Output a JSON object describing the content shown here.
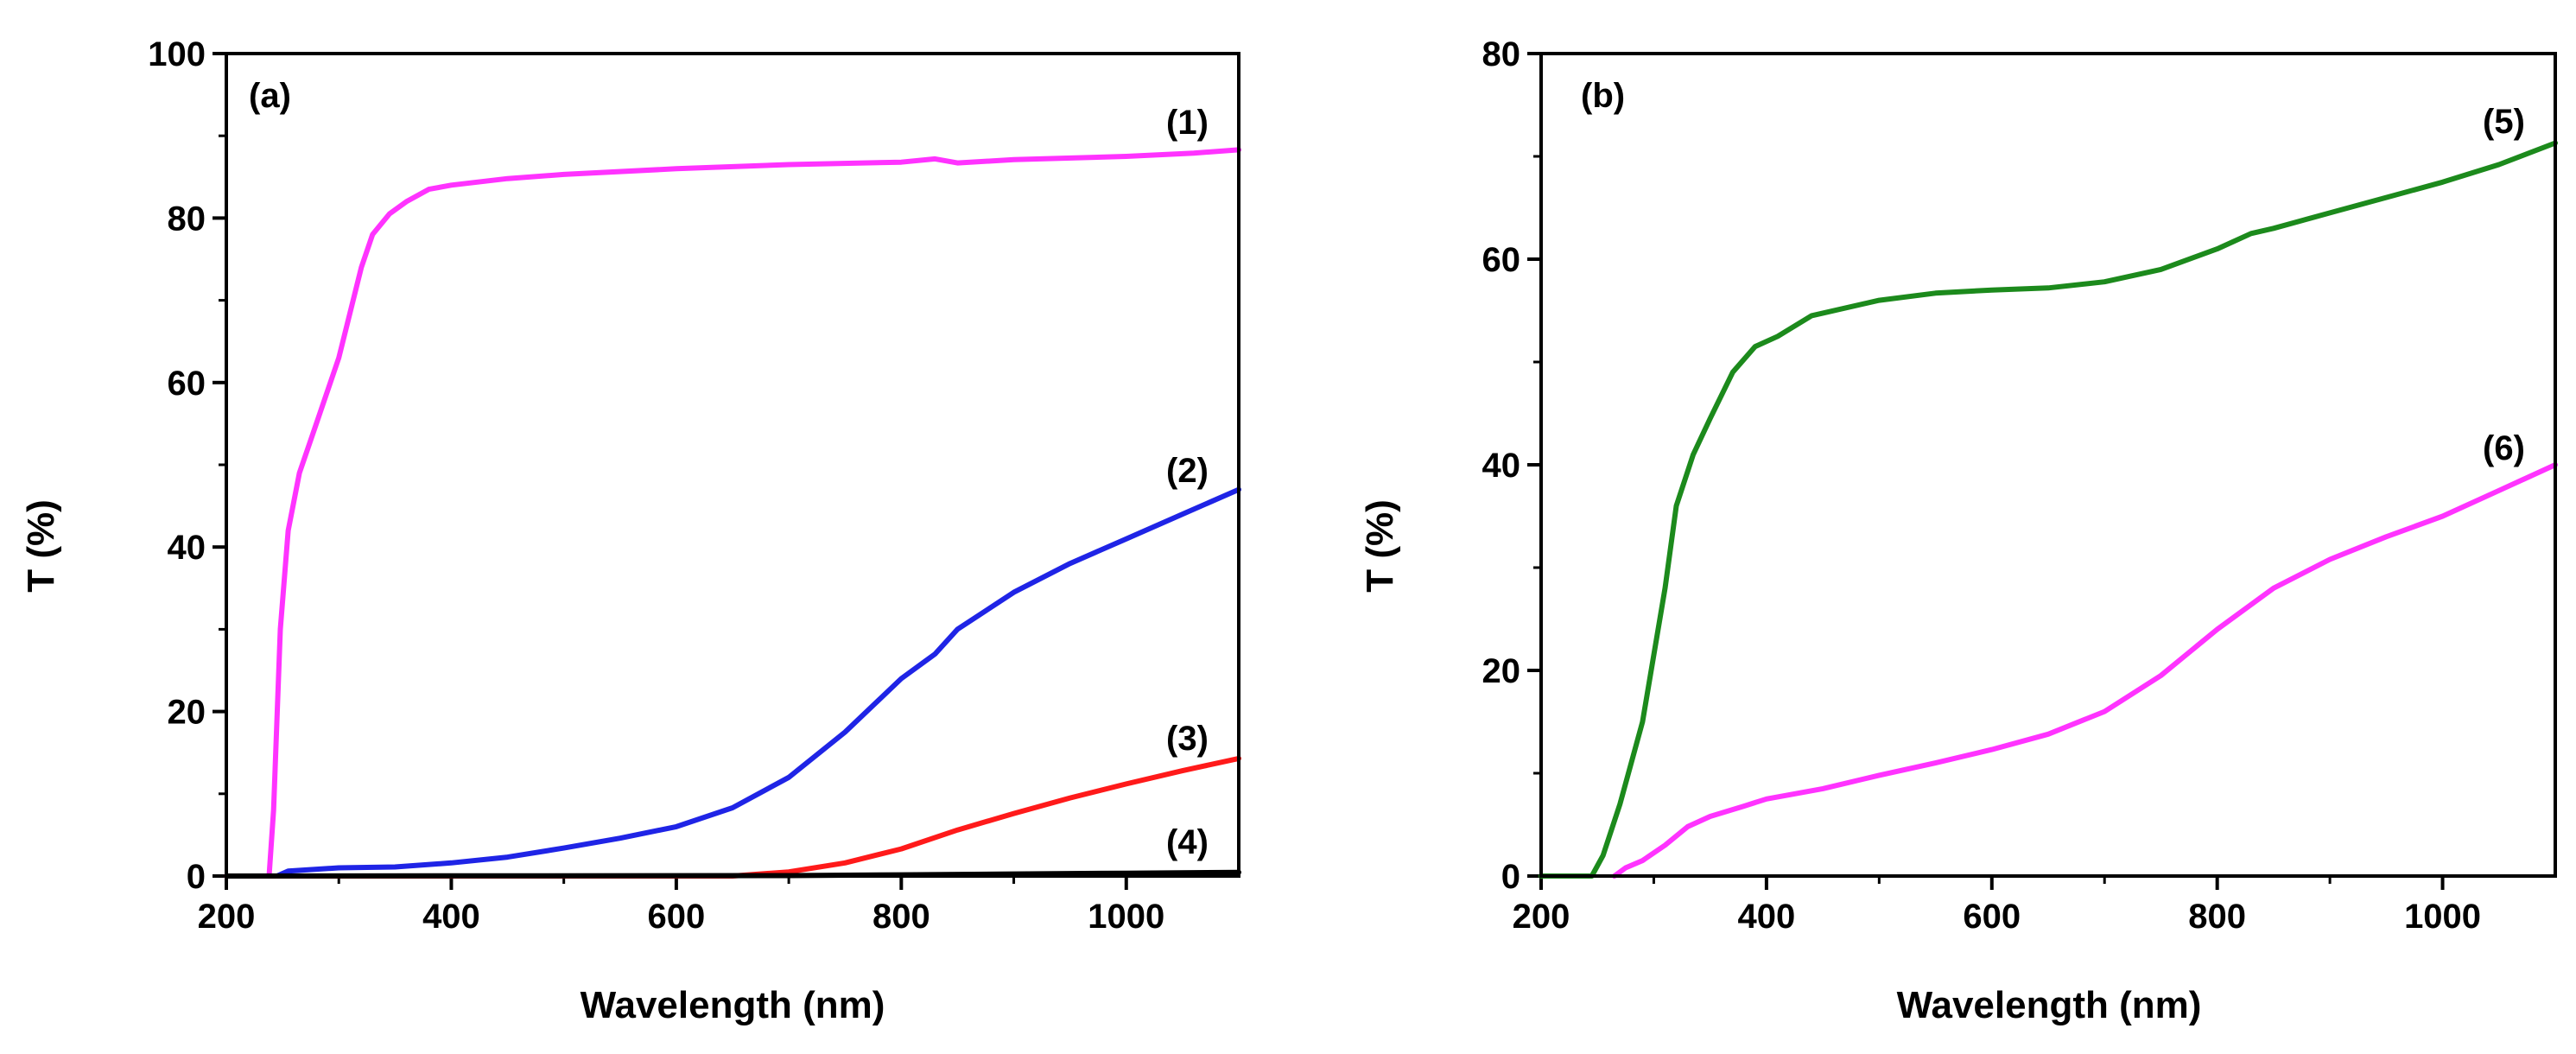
{
  "chart_data": [
    {
      "type": "line",
      "panel_label": "(a)",
      "xlabel": "Wavelength (nm)",
      "ylabel": "T (%)",
      "xlim": [
        200,
        1100
      ],
      "ylim": [
        0,
        100
      ],
      "xticks": [
        200,
        400,
        600,
        800,
        1000
      ],
      "yticks": [
        0,
        20,
        40,
        60,
        80,
        100
      ],
      "series": [
        {
          "name": "(1)",
          "color": "#ff33ff",
          "points": [
            [
              200,
              0
            ],
            [
              238,
              0
            ],
            [
              242,
              8
            ],
            [
              248,
              30
            ],
            [
              255,
              42
            ],
            [
              265,
              49
            ],
            [
              280,
              55
            ],
            [
              300,
              63
            ],
            [
              320,
              74
            ],
            [
              330,
              78
            ],
            [
              345,
              80.5
            ],
            [
              360,
              82
            ],
            [
              380,
              83.5
            ],
            [
              400,
              84
            ],
            [
              450,
              84.8
            ],
            [
              500,
              85.3
            ],
            [
              600,
              86
            ],
            [
              700,
              86.5
            ],
            [
              800,
              86.8
            ],
            [
              830,
              87.2
            ],
            [
              850,
              86.7
            ],
            [
              900,
              87.1
            ],
            [
              1000,
              87.5
            ],
            [
              1060,
              87.9
            ],
            [
              1100,
              88.3
            ]
          ]
        },
        {
          "name": "(2)",
          "color": "#1f24e6",
          "points": [
            [
              200,
              0
            ],
            [
              245,
              0
            ],
            [
              255,
              0.6
            ],
            [
              300,
              1
            ],
            [
              350,
              1.1
            ],
            [
              400,
              1.6
            ],
            [
              450,
              2.3
            ],
            [
              500,
              3.4
            ],
            [
              550,
              4.6
            ],
            [
              600,
              6
            ],
            [
              650,
              8.3
            ],
            [
              700,
              12
            ],
            [
              750,
              17.5
            ],
            [
              800,
              24
            ],
            [
              830,
              27
            ],
            [
              850,
              30
            ],
            [
              900,
              34.5
            ],
            [
              950,
              38
            ],
            [
              1000,
              41
            ],
            [
              1050,
              44
            ],
            [
              1100,
              47
            ]
          ]
        },
        {
          "name": "(3)",
          "color": "#ff1a1a",
          "points": [
            [
              200,
              0
            ],
            [
              650,
              0
            ],
            [
              700,
              0.5
            ],
            [
              750,
              1.6
            ],
            [
              800,
              3.3
            ],
            [
              850,
              5.6
            ],
            [
              900,
              7.6
            ],
            [
              950,
              9.5
            ],
            [
              1000,
              11.2
            ],
            [
              1050,
              12.8
            ],
            [
              1100,
              14.3
            ]
          ]
        },
        {
          "name": "(4)",
          "color": "#000000",
          "points": [
            [
              200,
              0
            ],
            [
              700,
              0.05
            ],
            [
              800,
              0.15
            ],
            [
              900,
              0.25
            ],
            [
              1000,
              0.35
            ],
            [
              1100,
              0.45
            ]
          ]
        }
      ]
    },
    {
      "type": "line",
      "panel_label": "(b)",
      "xlabel": "Wavelength (nm)",
      "ylabel": "T (%)",
      "xlim": [
        200,
        1100
      ],
      "ylim": [
        0,
        80
      ],
      "xticks": [
        200,
        400,
        600,
        800,
        1000
      ],
      "yticks": [
        0,
        20,
        40,
        60,
        80
      ],
      "series": [
        {
          "name": "(5)",
          "color": "#1c8a1c",
          "points": [
            [
              200,
              0
            ],
            [
              245,
              0
            ],
            [
              255,
              2
            ],
            [
              270,
              7
            ],
            [
              290,
              15
            ],
            [
              310,
              28
            ],
            [
              320,
              36
            ],
            [
              335,
              41
            ],
            [
              350,
              44.5
            ],
            [
              370,
              49
            ],
            [
              390,
              51.5
            ],
            [
              410,
              52.5
            ],
            [
              440,
              54.5
            ],
            [
              500,
              56
            ],
            [
              550,
              56.7
            ],
            [
              600,
              57
            ],
            [
              650,
              57.2
            ],
            [
              700,
              57.8
            ],
            [
              750,
              59
            ],
            [
              800,
              61
            ],
            [
              830,
              62.5
            ],
            [
              850,
              63
            ],
            [
              900,
              64.5
            ],
            [
              950,
              66
            ],
            [
              1000,
              67.5
            ],
            [
              1050,
              69.2
            ],
            [
              1100,
              71.3
            ]
          ]
        },
        {
          "name": "(6)",
          "color": "#ff33ff",
          "points": [
            [
              265,
              0
            ],
            [
              275,
              0.8
            ],
            [
              290,
              1.5
            ],
            [
              310,
              3
            ],
            [
              330,
              4.8
            ],
            [
              350,
              5.8
            ],
            [
              380,
              6.8
            ],
            [
              400,
              7.5
            ],
            [
              450,
              8.5
            ],
            [
              500,
              9.8
            ],
            [
              550,
              11
            ],
            [
              600,
              12.3
            ],
            [
              650,
              13.8
            ],
            [
              700,
              16
            ],
            [
              750,
              19.5
            ],
            [
              800,
              24
            ],
            [
              850,
              28
            ],
            [
              900,
              30.8
            ],
            [
              950,
              33
            ],
            [
              1000,
              35
            ],
            [
              1050,
              37.5
            ],
            [
              1100,
              40
            ]
          ]
        }
      ]
    }
  ]
}
